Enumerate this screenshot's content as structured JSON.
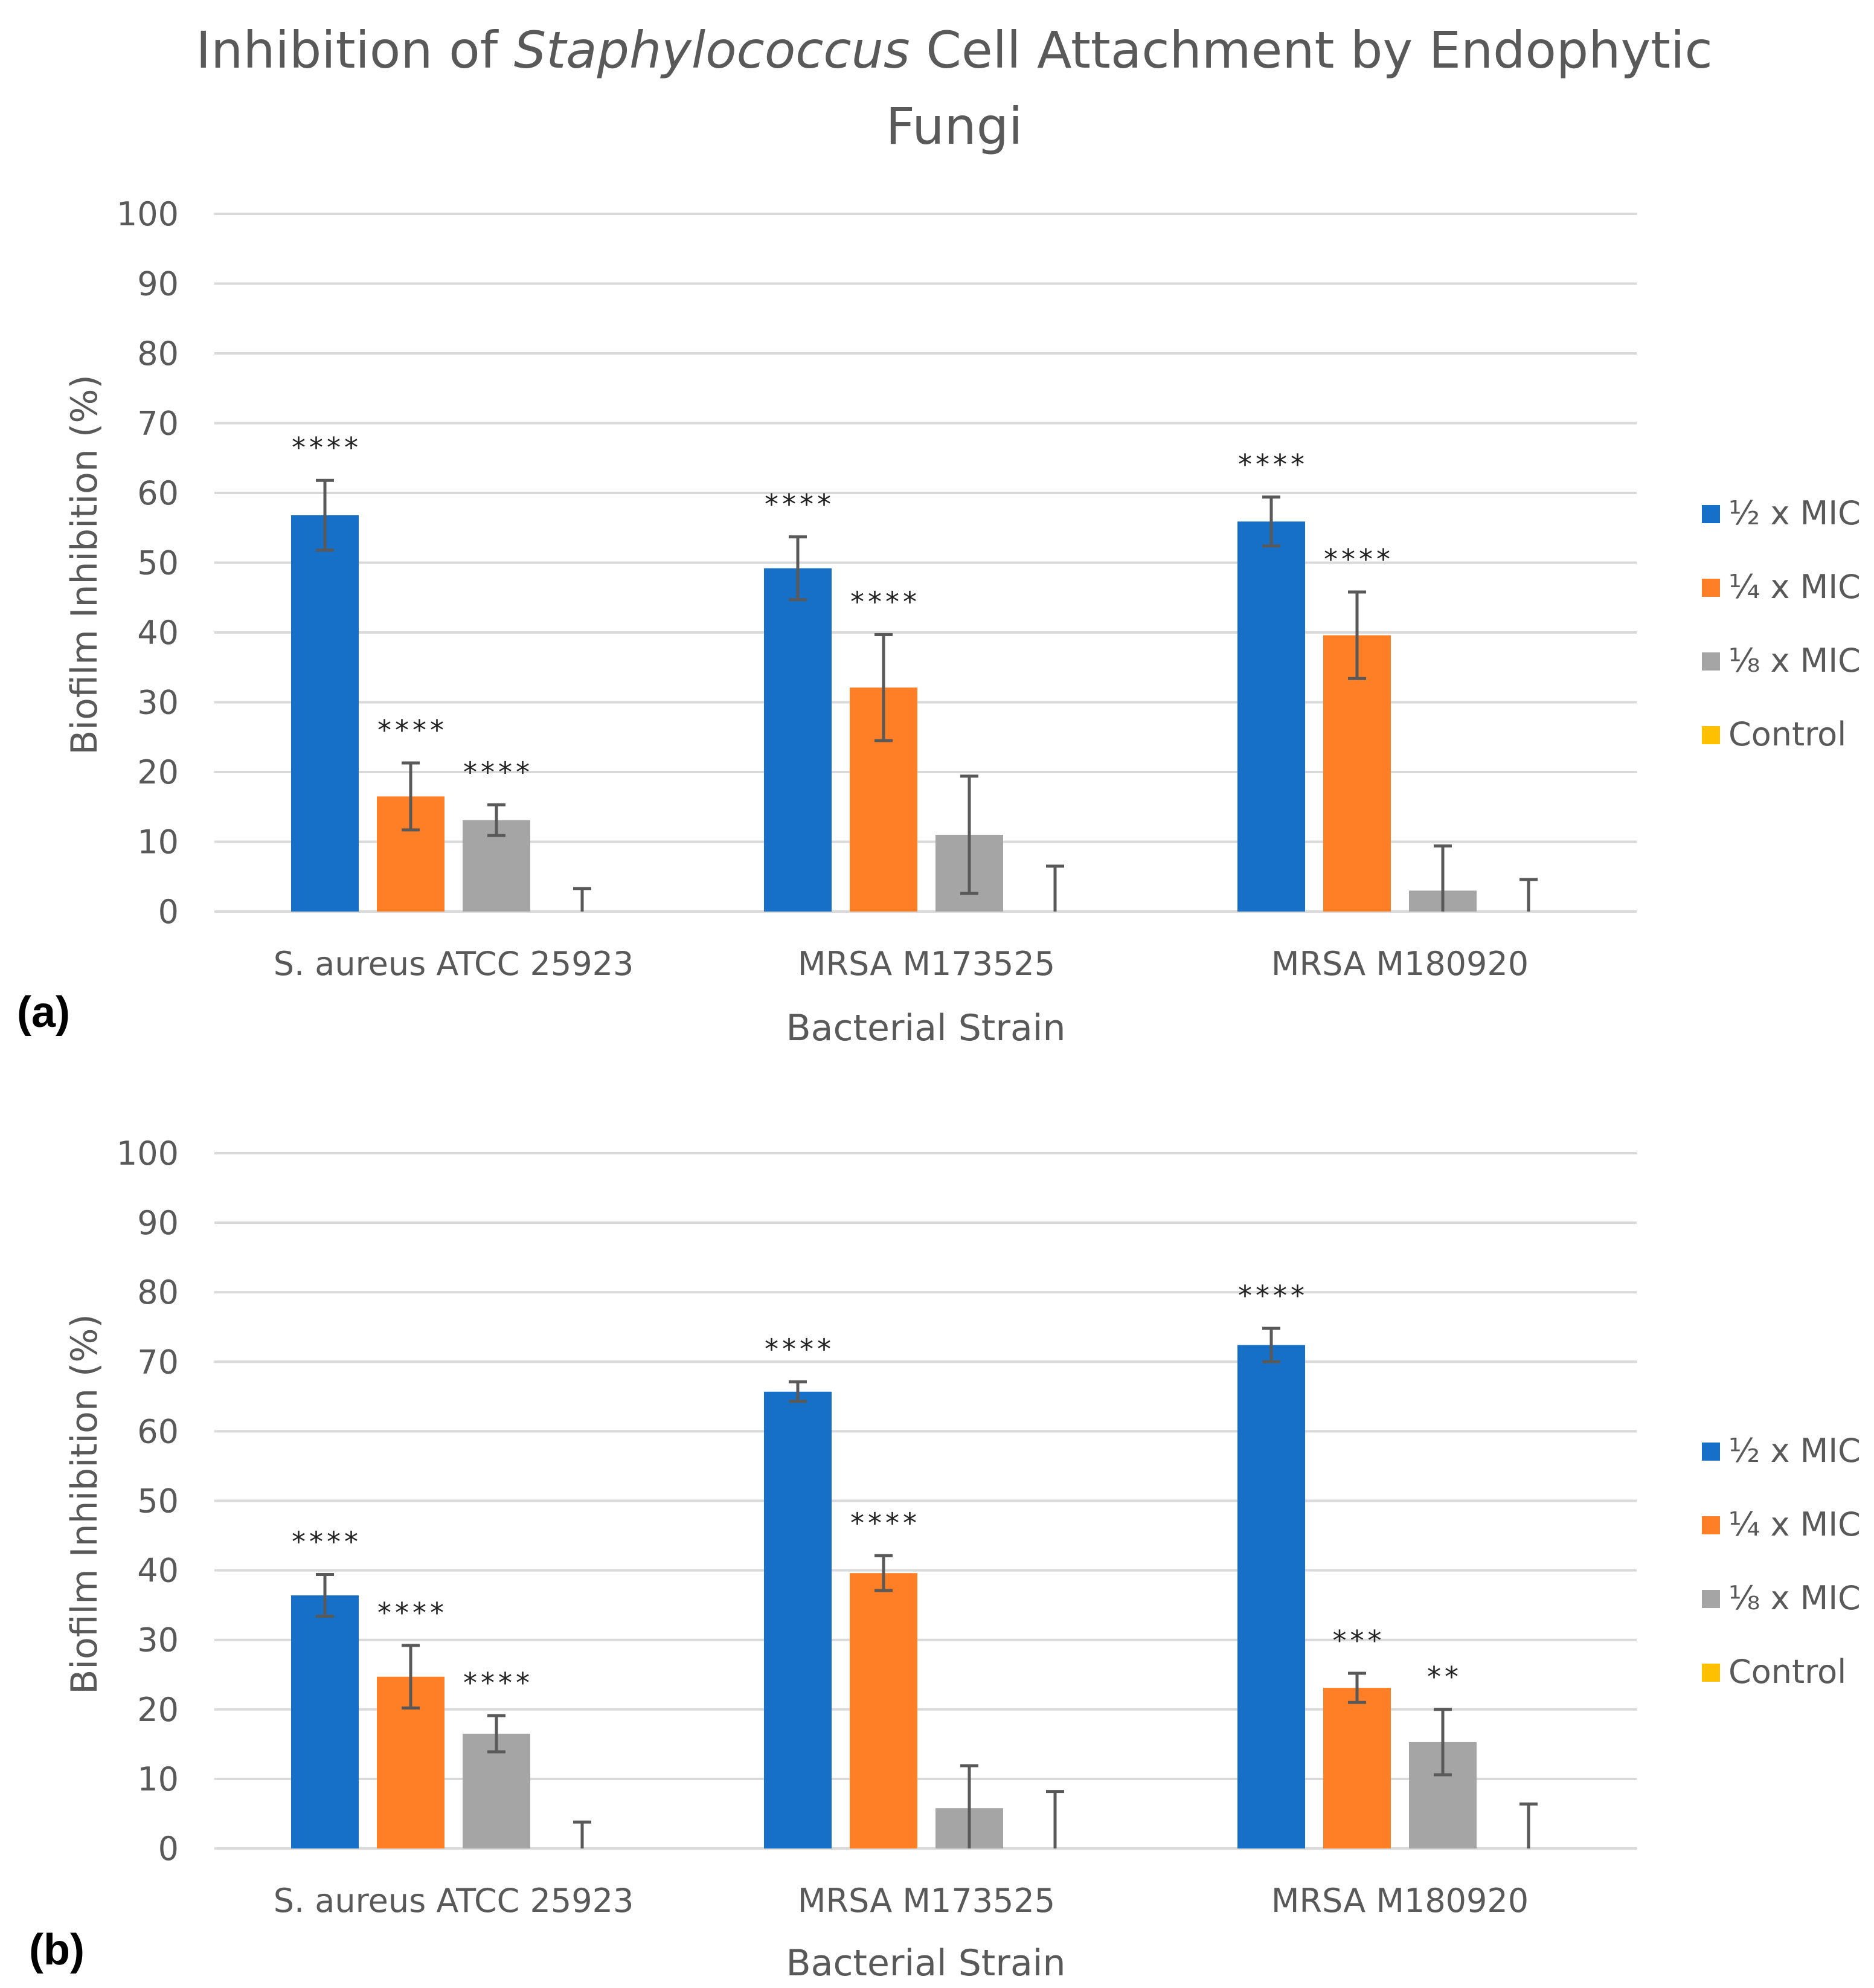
{
  "figure": {
    "title_parts": [
      "Inhibition of ",
      "Staphylococcus",
      " Cell Attachment by Endophytic",
      "Fungi"
    ],
    "ylabel": "Biofilm Inhibition (%)",
    "xlabel": "Bacterial Strain"
  },
  "chart_data": [
    {
      "type": "bar",
      "panel": "(a)",
      "title": "Inhibition of Staphylococcus Cell Attachment by Endophytic Fungi",
      "xlabel": "Bacterial Strain",
      "ylabel": "Biofilm Inhibition (%)",
      "ylim": [
        0,
        100
      ],
      "yticks": [
        0,
        10,
        20,
        30,
        40,
        50,
        60,
        70,
        80,
        90,
        100
      ],
      "grid": true,
      "legend_position": "right",
      "categories": [
        "S. aureus ATCC 25923",
        "MRSA M173525",
        "MRSA M180920"
      ],
      "series": [
        {
          "name": "½ x MIC",
          "color": "#1670C8",
          "values": [
            56.8,
            49.2,
            55.9
          ],
          "errors": [
            5.0,
            4.5,
            3.5
          ],
          "significance": [
            "****",
            "****",
            "****"
          ]
        },
        {
          "name": "¼ x MIC",
          "color": "#FF7F27",
          "values": [
            16.5,
            32.1,
            39.6
          ],
          "errors": [
            4.8,
            7.6,
            6.2
          ],
          "significance": [
            "****",
            "****",
            "****"
          ]
        },
        {
          "name": "⅛ x MIC",
          "color": "#A5A5A5",
          "values": [
            13.1,
            11.0,
            3.0
          ],
          "errors": [
            2.2,
            8.4,
            6.4
          ],
          "significance": [
            "****",
            "",
            ""
          ]
        },
        {
          "name": "Control",
          "color": "#FFC000",
          "values": [
            0,
            0,
            0
          ],
          "errors": [
            3.3,
            6.5,
            4.6
          ],
          "significance": [
            "",
            "",
            ""
          ]
        }
      ]
    },
    {
      "type": "bar",
      "panel": "(b)",
      "xlabel": "Bacterial Strain",
      "ylabel": "Biofilm Inhibition (%)",
      "ylim": [
        0,
        100
      ],
      "yticks": [
        0,
        10,
        20,
        30,
        40,
        50,
        60,
        70,
        80,
        90,
        100
      ],
      "grid": true,
      "legend_position": "right",
      "categories": [
        "S. aureus ATCC 25923",
        "MRSA M173525",
        "MRSA M180920"
      ],
      "series": [
        {
          "name": "½ x MIC",
          "color": "#1670C8",
          "values": [
            36.4,
            65.7,
            72.4
          ],
          "errors": [
            3.0,
            1.4,
            2.4
          ],
          "significance": [
            "****",
            "****",
            "****"
          ]
        },
        {
          "name": "¼ x MIC",
          "color": "#FF7F27",
          "values": [
            24.7,
            39.6,
            23.1
          ],
          "errors": [
            4.5,
            2.5,
            2.1
          ],
          "significance": [
            "****",
            "****",
            "***"
          ]
        },
        {
          "name": "⅛ x MIC",
          "color": "#A5A5A5",
          "values": [
            16.5,
            5.8,
            15.3
          ],
          "errors": [
            2.6,
            6.1,
            4.7
          ],
          "significance": [
            "****",
            "",
            "**"
          ]
        },
        {
          "name": "Control",
          "color": "#FFC000",
          "values": [
            0,
            0,
            0
          ],
          "errors": [
            3.8,
            8.2,
            6.4
          ],
          "significance": [
            "",
            "",
            ""
          ]
        }
      ]
    }
  ]
}
